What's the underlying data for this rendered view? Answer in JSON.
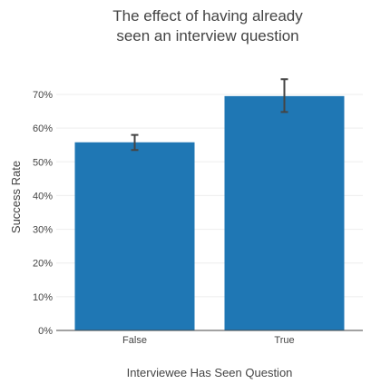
{
  "chart_data": {
    "type": "bar",
    "title_lines": [
      "The effect of having already",
      "seen an interview question"
    ],
    "xlabel": "Interviewee Has Seen Question",
    "ylabel": "Success Rate",
    "categories": [
      "False",
      "True"
    ],
    "values": [
      0.558,
      0.695
    ],
    "error_low": [
      0.535,
      0.648
    ],
    "error_high": [
      0.58,
      0.745
    ],
    "ylim": [
      0,
      0.7
    ],
    "yticks": [
      0,
      0.1,
      0.2,
      0.3,
      0.4,
      0.5,
      0.6,
      0.7
    ],
    "ytick_labels": [
      "0%",
      "10%",
      "20%",
      "30%",
      "40%",
      "50%",
      "60%",
      "70%"
    ],
    "grid": true,
    "colors": {
      "bar": "#1f77b4",
      "error_bar": "#444444",
      "grid": "#eeeeee",
      "text": "#444444"
    }
  }
}
